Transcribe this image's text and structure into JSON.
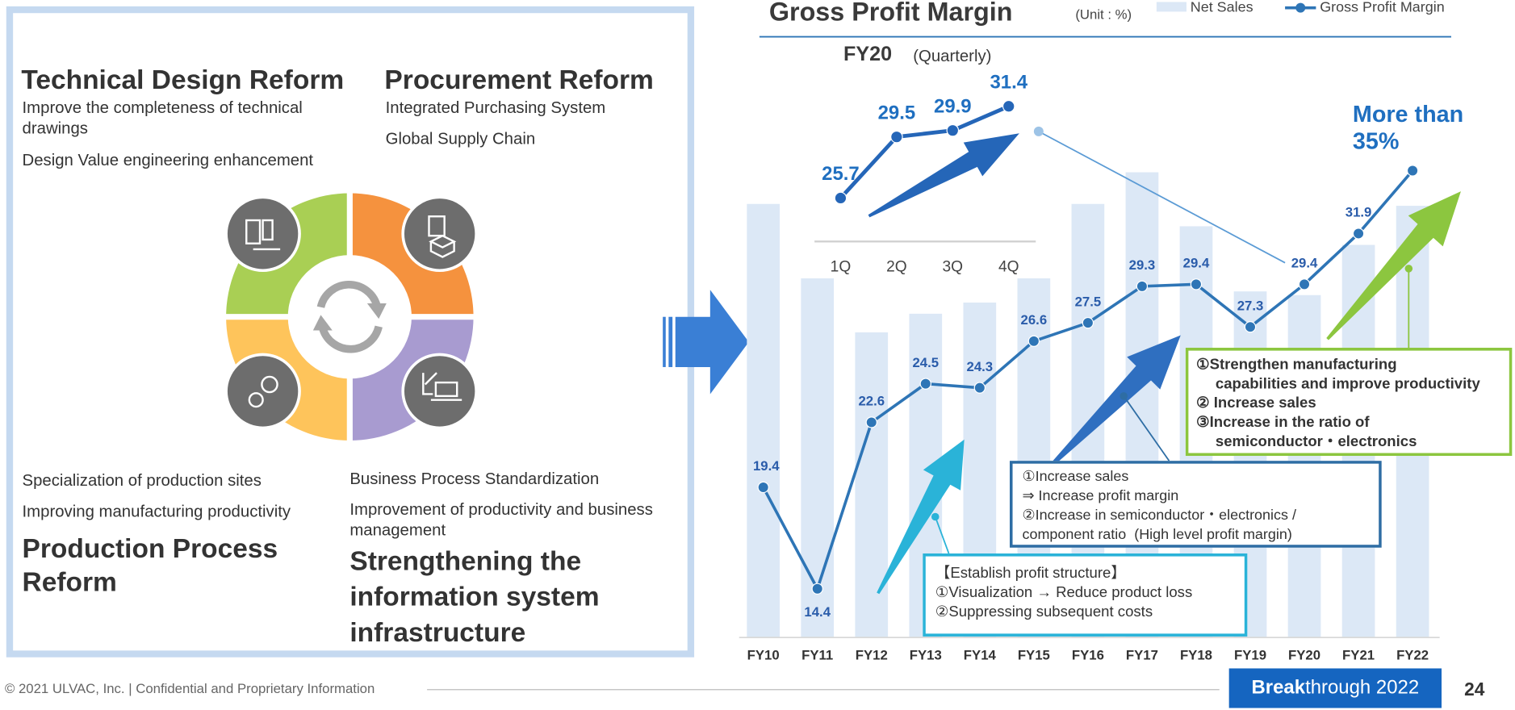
{
  "left_panel": {
    "quadrants": [
      {
        "title": "Technical Design Reform",
        "items": [
          "Improve the completeness of technical drawings",
          "Design Value engineering enhancement"
        ]
      },
      {
        "title": "Procurement Reform",
        "items": [
          "Integrated Purchasing System",
          "Global Supply Chain"
        ]
      },
      {
        "title": "Production Process Reform",
        "items": [
          "Specialization of production sites",
          "Improving manufacturing productivity"
        ]
      },
      {
        "title": "Strengthening the information system infrastructure",
        "items": [
          "Business Process Standardization",
          "Improvement of productivity and business management"
        ]
      }
    ]
  },
  "chart_data": [
    {
      "type": "combo",
      "title": "Gross Profit Margin",
      "unit": "(Unit : %)",
      "categories": [
        "FY10",
        "FY11",
        "FY12",
        "FY13",
        "FY14",
        "FY15",
        "FY16",
        "FY17",
        "FY18",
        "FY19",
        "FY20",
        "FY21",
        "FY22"
      ],
      "series": [
        {
          "name": "Net Sales",
          "type": "bar",
          "axis": "y2",
          "color": "#dce8f6",
          "values": [
            233,
            193,
            164,
            174,
            180,
            193,
            233,
            250,
            221,
            186,
            184,
            211,
            232
          ]
        },
        {
          "name": "Gross Profit Margin",
          "type": "line",
          "color": "#2e75b6",
          "values": [
            19.4,
            14.4,
            22.6,
            24.5,
            24.3,
            26.6,
            27.5,
            29.3,
            29.4,
            27.3,
            29.4,
            31.9,
            35
          ],
          "value_labels": [
            "19.4",
            "14.4",
            "22.6",
            "24.5",
            "24.3",
            "26.6",
            "27.5",
            "29.3",
            "29.4",
            "27.3",
            "29.4",
            "31.9",
            "More than 35%"
          ]
        }
      ],
      "ylim": [
        12,
        39.5
      ],
      "y2lim": [
        0,
        300
      ],
      "annotations": [
        {
          "lines": [
            "【Establish profit structure】",
            "①Visualization → Reduce product loss",
            "②Suppressing subsequent costs"
          ]
        },
        {
          "lines": [
            "①Increase sales",
            "⇒ Increase profit margin",
            "②Increase in semiconductor・electronics /",
            "component ratio  (High level profit margin)"
          ]
        },
        {
          "lines": [
            "①Strengthen manufacturing",
            "capabilities and improve productivity",
            "② Increase sales",
            "③Increase in the ratio of",
            "semiconductor・electronics"
          ]
        }
      ]
    },
    {
      "type": "line",
      "title": "FY20",
      "subtitle": "(Quarterly)",
      "categories": [
        "1Q",
        "2Q",
        "3Q",
        "4Q"
      ],
      "values": [
        25.7,
        29.5,
        29.9,
        31.4
      ],
      "color": "#2566b8",
      "ylim": [
        23,
        34.4
      ]
    }
  ],
  "footer": {
    "copyright": "© 2021 ULVAC, Inc. | Confidential and Proprietary Information",
    "logo": {
      "bold": "Break",
      "rest": "through 2022"
    },
    "page": "24"
  }
}
